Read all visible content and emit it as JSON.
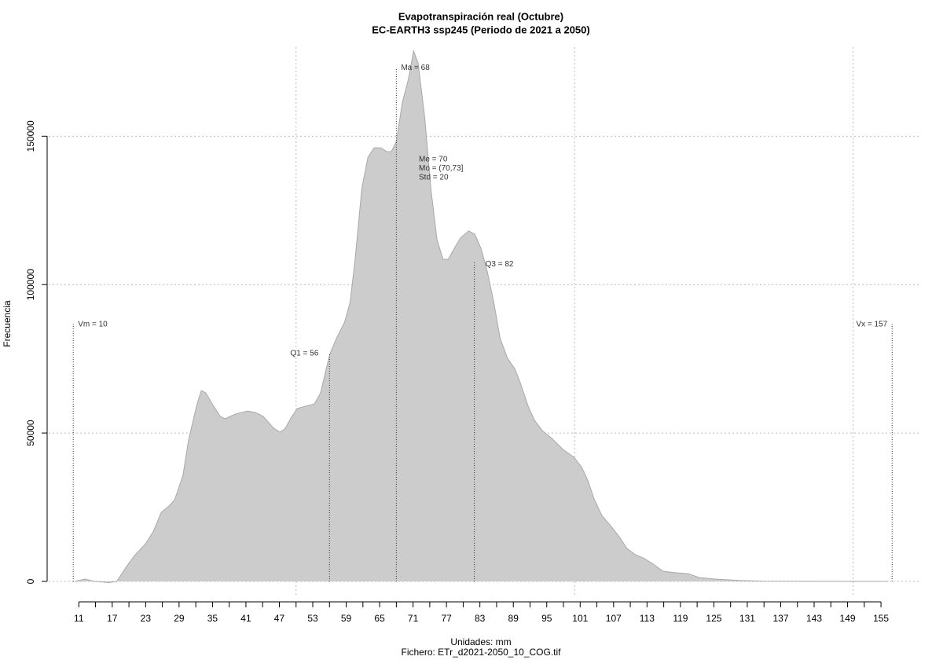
{
  "chart_data": {
    "type": "area",
    "title": "Evapotranspiración real (Octubre)",
    "subtitle": "EC-EARTH3 ssp245 (Periodo de 2021 a 2050)",
    "ylabel": "Frecuencia",
    "xlabel": "Unidades: mm",
    "caption": "Fichero: ETr_d2021-2050_10_COG.tif",
    "color": "#cccccc",
    "x": [
      10.3,
      12.1,
      13.8,
      16.4,
      17.8,
      19.5,
      20.9,
      23,
      24.4,
      25.8,
      27.2,
      28.2,
      29.7,
      30.7,
      32.2,
      33,
      33.8,
      35,
      36.4,
      37.2,
      39.2,
      41.3,
      42.7,
      44.1,
      46,
      47.1,
      48,
      49.1,
      50.2,
      51.6,
      53.3,
      54.4,
      55.4,
      56.1,
      57.3,
      58.7,
      59.7,
      60.6,
      61.8,
      62.9,
      64,
      65.2,
      66.3,
      67.1,
      68,
      69.1,
      70.2,
      71.1,
      71.9,
      73.1,
      74.2,
      75.3,
      76.4,
      77.3,
      78.4,
      79.5,
      81,
      82.1,
      83.2,
      84.3,
      85.5,
      86.6,
      87.9,
      89.3,
      90.3,
      91.7,
      92.8,
      94.2,
      95.9,
      97.9,
      99.9,
      101.3,
      102.4,
      103.5,
      104.9,
      106.3,
      108,
      109.4,
      110.9,
      112.3,
      113.9,
      115.9,
      118.2,
      120.4,
      122.4,
      125.2,
      129.5,
      133.7,
      156.3
    ],
    "values": [
      0,
      800,
      0,
      -400,
      0,
      4800,
      8500,
      12700,
      16900,
      23300,
      25400,
      27500,
      35700,
      47600,
      59600,
      64300,
      63500,
      59600,
      55600,
      54800,
      56400,
      57400,
      56900,
      55600,
      51600,
      50300,
      51400,
      55100,
      58200,
      59000,
      59800,
      63500,
      71500,
      76800,
      82100,
      87300,
      94000,
      108500,
      132300,
      142900,
      146100,
      146100,
      144800,
      144800,
      148200,
      161500,
      169400,
      178700,
      174700,
      156200,
      132300,
      115100,
      108500,
      108500,
      112200,
      115700,
      118100,
      116900,
      112200,
      104600,
      94000,
      82100,
      75400,
      71500,
      66700,
      58800,
      54300,
      50800,
      48200,
      44500,
      41800,
      38400,
      33900,
      27800,
      22200,
      19100,
      15100,
      11100,
      9000,
      7900,
      6100,
      3400,
      2900,
      2600,
      1300,
      800,
      300,
      100,
      0
    ],
    "xlim": [
      5.6,
      161.9
    ],
    "ylim": [
      -5300,
      180000
    ],
    "xticks": [
      11,
      17,
      23,
      29,
      35,
      41,
      47,
      53,
      59,
      65,
      71,
      77,
      83,
      89,
      95,
      101,
      107,
      113,
      119,
      125,
      131,
      137,
      143,
      149,
      155
    ],
    "xminorticks": [
      14,
      20,
      26,
      32,
      38,
      44,
      50,
      56,
      62,
      68,
      74,
      80,
      86,
      92,
      98,
      104,
      110,
      116,
      122,
      128,
      134,
      140,
      146,
      152
    ],
    "yticks": [
      0,
      50000,
      100000,
      150000
    ],
    "xgrid": [
      50,
      100,
      150
    ],
    "grid": true,
    "statistics": [
      {
        "label": "Vm = 10",
        "x": 10,
        "y": 86800
      },
      {
        "label": "Q1 = 56",
        "x": 56,
        "y": 76800
      },
      {
        "label": "Ma = 68",
        "x": 68,
        "y": 173000
      },
      {
        "label": "Q3 = 82",
        "x": 82,
        "y": 107700
      },
      {
        "label": "Vx = 157",
        "x": 157,
        "y": 86800
      }
    ],
    "notes": [
      "Me = 70",
      "Mo = (70,73]",
      "Std = 20"
    ]
  }
}
